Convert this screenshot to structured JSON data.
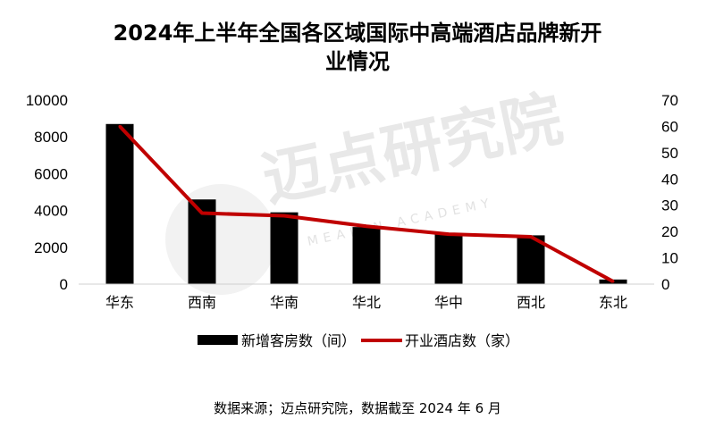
{
  "title_lines": [
    "2024年上半年全国各区域国际中高端酒店品牌新开",
    "业情况"
  ],
  "source_note": "数据来源；迈点研究院，数据截至 2024 年 6 月",
  "watermark": {
    "main": "迈点研究院",
    "sub": "MEADIN ACADEMY"
  },
  "colors": {
    "bar": "#000000",
    "line": "#c00000"
  },
  "chart_data": {
    "type": "bar",
    "categories": [
      "华东",
      "西南",
      "华南",
      "华北",
      "华中",
      "西北",
      "东北"
    ],
    "series": [
      {
        "name": "新增客房数（间）",
        "type": "bar",
        "axis": "left",
        "values": [
          8700,
          4600,
          3900,
          3100,
          2750,
          2650,
          250
        ]
      },
      {
        "name": "开业酒店数（家）",
        "type": "line",
        "axis": "right",
        "values": [
          60,
          27,
          26,
          22,
          19,
          18,
          1
        ]
      }
    ],
    "y_left": {
      "min": 0,
      "max": 10000,
      "ticks": [
        "0",
        "2000",
        "4000",
        "6000",
        "8000",
        "10000"
      ]
    },
    "y_right": {
      "min": 0,
      "max": 70,
      "ticks": [
        "0",
        "10",
        "20",
        "30",
        "40",
        "50",
        "60",
        "70"
      ]
    },
    "grid": false,
    "legend": "bottom"
  }
}
